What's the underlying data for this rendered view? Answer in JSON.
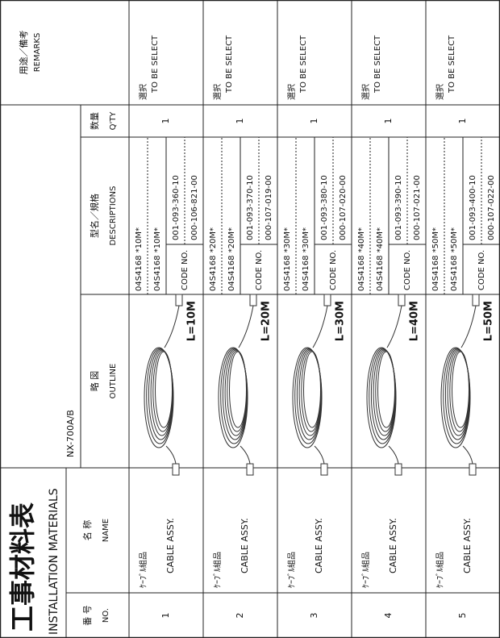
{
  "header": {
    "title": "工事材料表",
    "subtitle": "INSTALLATION MATERIALS",
    "model": "NX-700A/B"
  },
  "columns": [
    {
      "ja": "番 号",
      "en": "NO."
    },
    {
      "ja": "名 称",
      "en": "NAME"
    },
    {
      "ja": "略 図",
      "en": "OUTLINE"
    },
    {
      "ja": "型名／規格",
      "en": "DESCRIPTIONS"
    },
    {
      "ja": "数量",
      "en": "Q'TY"
    },
    {
      "ja": "用途／備考",
      "en": "REMARKS"
    }
  ],
  "rows": [
    {
      "no": "1",
      "name_ja": "ｹｰﾌﾞﾙ組品",
      "name_en": "CABLE ASSY.",
      "length": "L=10M",
      "desc1": "04S4168 *10M*",
      "desc2": "04S4168 *10M*",
      "code_label": "CODE NO.",
      "code1": "001-093-360-10",
      "code2": "000-106-821-00",
      "qty": "1",
      "remarks_ja": "選択",
      "remarks_en": "TO BE SELECT"
    },
    {
      "no": "2",
      "name_ja": "ｹｰﾌﾞﾙ組品",
      "name_en": "CABLE ASSY.",
      "length": "L=20M",
      "desc1": "04S4168 *20M*",
      "desc2": "04S4168 *20M*",
      "code_label": "CODE NO.",
      "code1": "001-093-370-10",
      "code2": "000-107-019-00",
      "qty": "1",
      "remarks_ja": "選択",
      "remarks_en": "TO BE SELECT"
    },
    {
      "no": "3",
      "name_ja": "ｹｰﾌﾞﾙ組品",
      "name_en": "CABLE ASSY.",
      "length": "L=30M",
      "desc1": "04S4168 *30M*",
      "desc2": "04S4168 *30M*",
      "code_label": "CODE NO.",
      "code1": "001-093-380-10",
      "code2": "000-107-020-00",
      "qty": "1",
      "remarks_ja": "選択",
      "remarks_en": "TO BE SELECT"
    },
    {
      "no": "4",
      "name_ja": "ｹｰﾌﾞﾙ組品",
      "name_en": "CABLE ASSY.",
      "length": "L=40M",
      "desc1": "04S4168 *40M*",
      "desc2": "04S4168 *40M*",
      "code_label": "CODE NO.",
      "code1": "001-093-390-10",
      "code2": "000-107-021-00",
      "qty": "1",
      "remarks_ja": "選択",
      "remarks_en": "TO BE SELECT"
    },
    {
      "no": "5",
      "name_ja": "ｹｰﾌﾞﾙ組品",
      "name_en": "CABLE ASSY.",
      "length": "L=50M",
      "desc1": "04S4168 *50M*",
      "desc2": "04S4168 *50M*",
      "code_label": "CODE NO.",
      "code1": "001-093-400-10",
      "code2": "000-107-022-00",
      "qty": "1",
      "remarks_ja": "選択",
      "remarks_en": "TO BE SELECT"
    }
  ]
}
